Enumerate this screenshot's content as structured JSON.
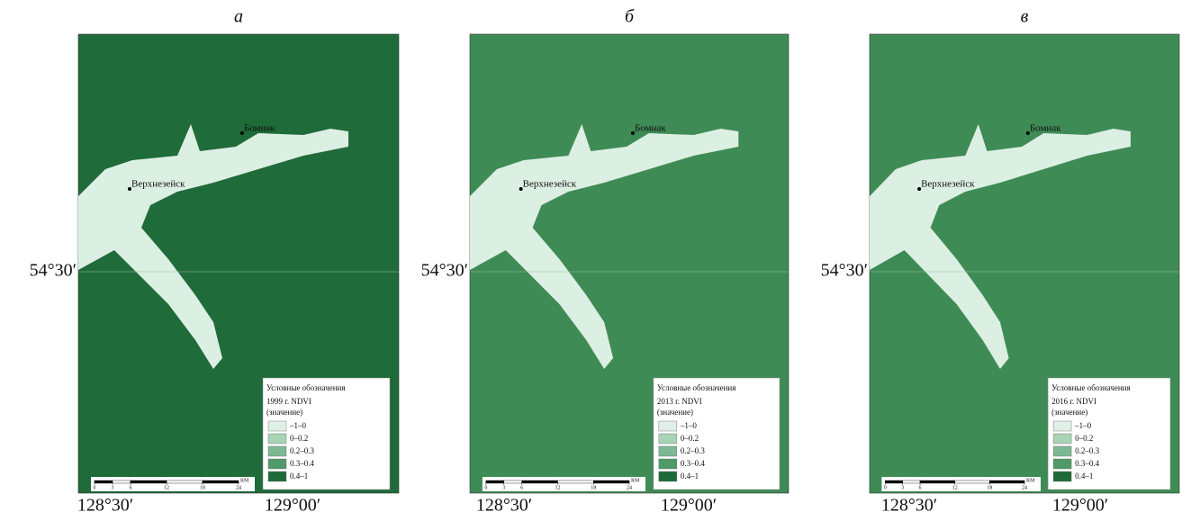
{
  "panels": [
    {
      "label": "а",
      "latitude": "54°30′",
      "longitudes": [
        "128°30′",
        "129°00′"
      ],
      "places": [
        "Бомнак",
        "Верхнезейск"
      ],
      "legend": {
        "title": "Условные обозначения",
        "year": "1999 г. NDVI",
        "note": "(значение)",
        "classes": [
          "–1–0",
          "0–0.2",
          "0.2–0.3",
          "0.3–0.4",
          "0.4–1"
        ]
      },
      "scale": {
        "ticks": [
          0,
          3,
          6,
          12,
          18,
          24
        ],
        "unit": "КМ"
      }
    },
    {
      "label": "б",
      "latitude": "54°30′",
      "longitudes": [
        "128°30′",
        "129°00′"
      ],
      "places": [
        "Бомнак",
        "Верхнезейск"
      ],
      "legend": {
        "title": "Условные обозначения",
        "year": "2013 г. NDVI",
        "note": "(значение)",
        "classes": [
          "–1–0",
          "0–0.2",
          "0.2–0.3",
          "0.3–0.4",
          "0.4–1"
        ]
      },
      "scale": {
        "ticks": [
          0,
          3,
          6,
          12,
          18,
          24
        ],
        "unit": "КМ"
      }
    },
    {
      "label": "в",
      "latitude": "54°30′",
      "longitudes": [
        "128°30′",
        "129°00′"
      ],
      "places": [
        "Бомнак",
        "Верхнезейск"
      ],
      "legend": {
        "title": "Условные обозначения",
        "year": "2016 г. NDVI",
        "note": "(значение)",
        "classes": [
          "–1–0",
          "0–0.2",
          "0.2–0.3",
          "0.3–0.4",
          "0.4–1"
        ]
      },
      "scale": {
        "ticks": [
          0,
          3,
          6,
          12,
          18,
          24
        ],
        "unit": "КМ"
      }
    }
  ]
}
